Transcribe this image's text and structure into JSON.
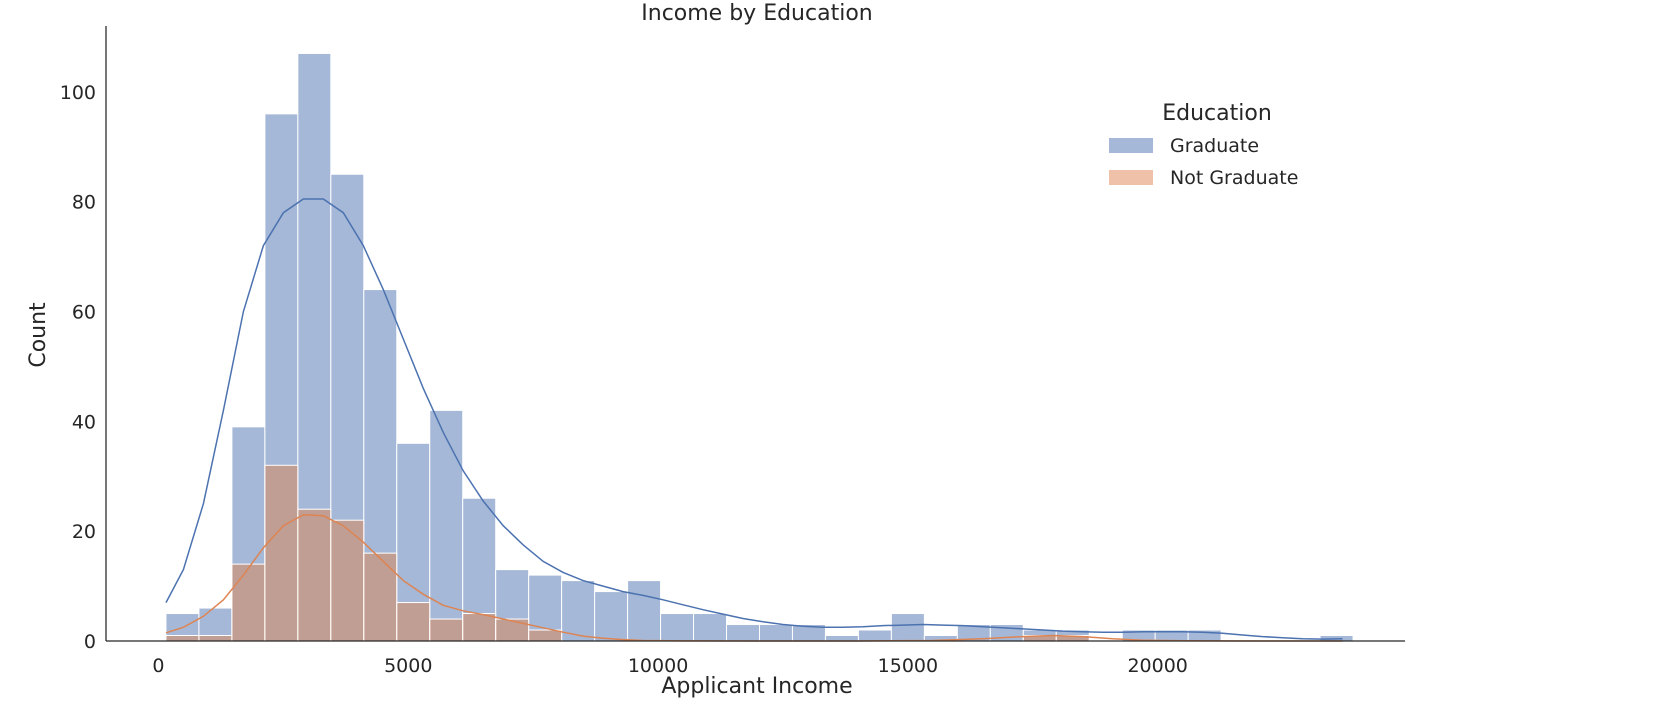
{
  "chart_data": {
    "type": "histogram",
    "title": "Income by Education",
    "xlabel": "Applicant Income",
    "ylabel": "Count",
    "xlim": [
      -1050,
      24950
    ],
    "ylim": [
      0,
      112
    ],
    "xticks": [
      0,
      5000,
      10000,
      15000,
      20000
    ],
    "yticks": [
      0,
      20,
      40,
      60,
      80,
      100
    ],
    "grid": false,
    "stacking": "layered",
    "bin_edges": [
      150,
      810,
      1470,
      2130,
      2790,
      3450,
      4110,
      4770,
      5430,
      6090,
      6750,
      7410,
      8070,
      8730,
      9390,
      10050,
      10710,
      11370,
      12030,
      12690,
      13350,
      14010,
      14670,
      15330,
      15990,
      16650,
      17310,
      17970,
      18630,
      19290,
      19950,
      20610,
      21270,
      21930,
      22590,
      23250,
      23910
    ],
    "legend": {
      "title": "Education",
      "placement": "upper-right"
    },
    "series": [
      {
        "name": "Graduate",
        "color": "#4c72b0",
        "counts": [
          5,
          6,
          39,
          96,
          107,
          85,
          64,
          36,
          42,
          26,
          13,
          12,
          11,
          9,
          11,
          5,
          5,
          3,
          3,
          3,
          1,
          2,
          5,
          1,
          3,
          3,
          2,
          2,
          0,
          2,
          2,
          2,
          0,
          0,
          0,
          1
        ],
        "kde": [
          [
            150,
            7
          ],
          [
            500,
            13
          ],
          [
            900,
            25
          ],
          [
            1300,
            42
          ],
          [
            1700,
            60
          ],
          [
            2100,
            72
          ],
          [
            2500,
            78
          ],
          [
            2900,
            80.5
          ],
          [
            3300,
            80.5
          ],
          [
            3700,
            78
          ],
          [
            4100,
            72
          ],
          [
            4500,
            64
          ],
          [
            4900,
            55
          ],
          [
            5300,
            46
          ],
          [
            5700,
            38
          ],
          [
            6100,
            31
          ],
          [
            6500,
            25.5
          ],
          [
            6900,
            21
          ],
          [
            7300,
            17.5
          ],
          [
            7700,
            14.5
          ],
          [
            8100,
            12.5
          ],
          [
            8500,
            11
          ],
          [
            8900,
            10
          ],
          [
            9300,
            9
          ],
          [
            9700,
            8.3
          ],
          [
            10100,
            7.5
          ],
          [
            10500,
            6.6
          ],
          [
            10900,
            5.7
          ],
          [
            11300,
            4.9
          ],
          [
            11700,
            4.1
          ],
          [
            12100,
            3.5
          ],
          [
            12500,
            3
          ],
          [
            12900,
            2.7
          ],
          [
            13300,
            2.5
          ],
          [
            13700,
            2.5
          ],
          [
            14100,
            2.6
          ],
          [
            14500,
            2.8
          ],
          [
            14900,
            2.9
          ],
          [
            15300,
            3
          ],
          [
            15700,
            2.9
          ],
          [
            16100,
            2.8
          ],
          [
            16500,
            2.6
          ],
          [
            16900,
            2.4
          ],
          [
            17300,
            2.2
          ],
          [
            17700,
            2
          ],
          [
            18100,
            1.8
          ],
          [
            18500,
            1.7
          ],
          [
            18900,
            1.6
          ],
          [
            19300,
            1.6
          ],
          [
            19700,
            1.7
          ],
          [
            20100,
            1.7
          ],
          [
            20500,
            1.7
          ],
          [
            20900,
            1.6
          ],
          [
            21300,
            1.4
          ],
          [
            21700,
            1.1
          ],
          [
            22100,
            0.8
          ],
          [
            22500,
            0.6
          ],
          [
            22900,
            0.4
          ],
          [
            23300,
            0.35
          ],
          [
            23700,
            0.4
          ]
        ]
      },
      {
        "name": "Not Graduate",
        "color": "#dd8452",
        "counts": [
          1,
          1,
          14,
          32,
          24,
          22,
          16,
          7,
          4,
          5,
          4,
          2,
          0,
          0,
          0,
          0,
          0,
          0,
          0,
          0,
          0,
          0,
          0,
          0,
          0,
          0,
          1,
          1,
          0,
          0,
          0,
          0,
          0,
          0,
          0,
          0
        ],
        "kde": [
          [
            150,
            1.5
          ],
          [
            500,
            2.5
          ],
          [
            900,
            4.5
          ],
          [
            1300,
            7.5
          ],
          [
            1700,
            12
          ],
          [
            2100,
            17
          ],
          [
            2500,
            21
          ],
          [
            2900,
            23
          ],
          [
            3300,
            22.8
          ],
          [
            3700,
            21
          ],
          [
            4100,
            18
          ],
          [
            4500,
            14.5
          ],
          [
            4900,
            11
          ],
          [
            5300,
            8.5
          ],
          [
            5700,
            6.5
          ],
          [
            6100,
            5.5
          ],
          [
            6500,
            4.8
          ],
          [
            6900,
            4
          ],
          [
            7300,
            3.2
          ],
          [
            7700,
            2.4
          ],
          [
            8100,
            1.6
          ],
          [
            8500,
            0.9
          ],
          [
            8900,
            0.5
          ],
          [
            9300,
            0.25
          ],
          [
            9700,
            0.1
          ],
          [
            10500,
            0.02
          ],
          [
            12000,
            0
          ],
          [
            14000,
            0
          ],
          [
            15500,
            0.1
          ],
          [
            16500,
            0.4
          ],
          [
            17300,
            0.8
          ],
          [
            17900,
            1
          ],
          [
            18500,
            0.8
          ],
          [
            19100,
            0.4
          ],
          [
            19700,
            0.15
          ],
          [
            20500,
            0.05
          ],
          [
            22000,
            0
          ],
          [
            23700,
            0
          ]
        ]
      }
    ]
  }
}
